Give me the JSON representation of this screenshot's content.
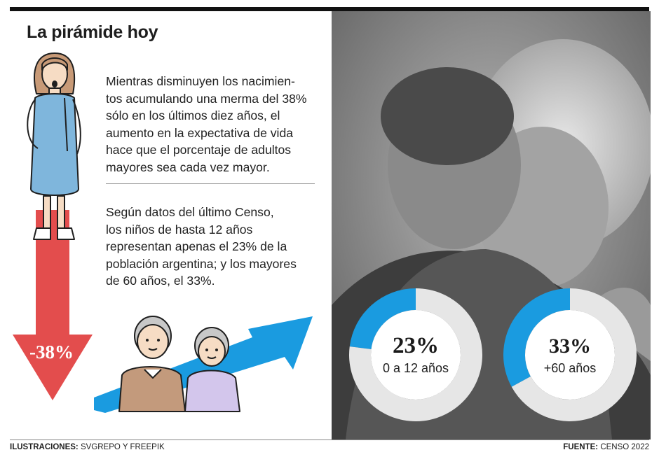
{
  "title": "La pirámide hoy",
  "paragraph1": "Mientras disminuyen los nacimien- tos acumulando una merma del 38% sólo en los últimos diez años, el aumento en la expectativa de vida hace que el porcentaje de adultos mayores sea cada vez mayor.",
  "paragraph1_lines": [
    "Mientras disminuyen los nacimien-",
    "tos acumulando una merma del 38%",
    "sólo en los últimos diez años, el",
    "aumento en la expectativa de vida",
    "hace que el porcentaje de adultos",
    "mayores sea cada vez mayor."
  ],
  "paragraph2_lines": [
    "Según datos del último Censo,",
    "los niños de hasta 12 años",
    "representan apenas el 23% de la",
    "población argentina; y los mayores",
    "de 60 años, el 33%."
  ],
  "birth_drop_label": "-38%",
  "icons": {
    "pregnant": "pregnant-woman-icon",
    "elderly": "elderly-couple-icon",
    "trend_up": "upward-trend-arrow-icon",
    "trend_down": "downward-arrow-icon"
  },
  "colors": {
    "accent_blue": "#1a9be0",
    "ring_grey": "#e6e6e6",
    "arrow_red": "#e34d4d"
  },
  "chart_data": [
    {
      "type": "pie",
      "donut": true,
      "values": [
        23,
        77
      ],
      "display_value": "23%",
      "label": "0 a 12 años"
    },
    {
      "type": "pie",
      "donut": true,
      "values": [
        33,
        67
      ],
      "display_value": "33%",
      "label": "+60 años"
    }
  ],
  "footer": {
    "left_label": "ILUSTRACIONES:",
    "left_value": "SVGREPO Y FREEPIK",
    "right_label": "FUENTE:",
    "right_value": "CENSO 2022"
  }
}
